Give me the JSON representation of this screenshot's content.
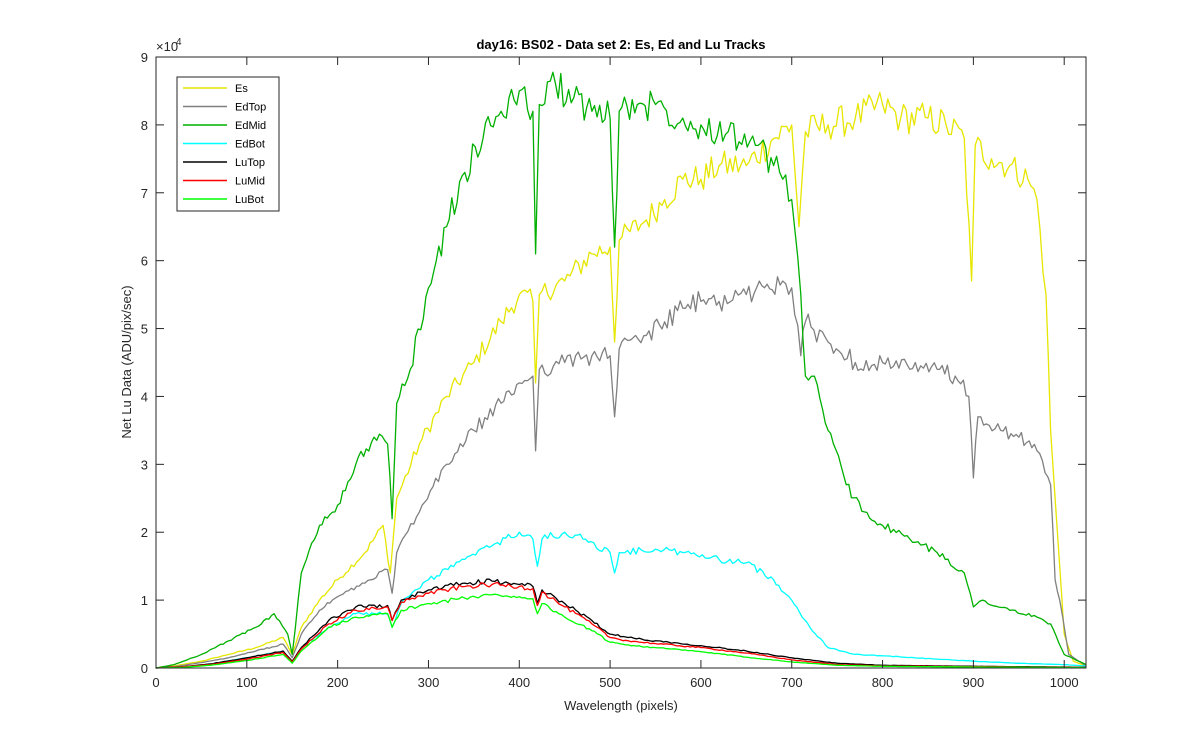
{
  "chart_data": {
    "type": "line",
    "title": "day16: BS02 - Data set 2: Es, Ed and Lu Tracks",
    "xlabel": "Wavelength (pixels)",
    "ylabel": "Net Lu Data (ADU/pix/sec)",
    "xlim": [
      0,
      1024
    ],
    "ylim": [
      0,
      90000
    ],
    "x_ticks": [
      0,
      100,
      200,
      300,
      400,
      500,
      600,
      700,
      800,
      900,
      1000
    ],
    "y_ticks": [
      0,
      10000,
      20000,
      30000,
      40000,
      50000,
      60000,
      70000,
      80000,
      90000
    ],
    "y_tick_labels": [
      "0",
      "1",
      "2",
      "3",
      "4",
      "5",
      "6",
      "7",
      "8",
      "9"
    ],
    "y_exponent_base": "×10",
    "y_exponent_power": "4",
    "grid": false,
    "legend_position": "top-left",
    "series": [
      {
        "name": "Es",
        "color": "#e6e600",
        "points": [
          [
            0,
            0
          ],
          [
            20,
            300
          ],
          [
            50,
            1000
          ],
          [
            80,
            2000
          ],
          [
            110,
            3000
          ],
          [
            140,
            4500
          ],
          [
            150,
            2000
          ],
          [
            160,
            6000
          ],
          [
            180,
            10000
          ],
          [
            200,
            13000
          ],
          [
            230,
            17000
          ],
          [
            250,
            21000
          ],
          [
            258,
            14000
          ],
          [
            265,
            25000
          ],
          [
            290,
            33000
          ],
          [
            320,
            40000
          ],
          [
            350,
            45000
          ],
          [
            380,
            51000
          ],
          [
            400,
            55000
          ],
          [
            415,
            54000
          ],
          [
            418,
            42000
          ],
          [
            422,
            55000
          ],
          [
            450,
            57000
          ],
          [
            480,
            61000
          ],
          [
            500,
            62000
          ],
          [
            505,
            48000
          ],
          [
            510,
            63000
          ],
          [
            540,
            66000
          ],
          [
            560,
            69000
          ],
          [
            580,
            72000
          ],
          [
            600,
            72000
          ],
          [
            620,
            74000
          ],
          [
            650,
            74000
          ],
          [
            680,
            78000
          ],
          [
            700,
            80000
          ],
          [
            708,
            65000
          ],
          [
            715,
            79000
          ],
          [
            740,
            80000
          ],
          [
            770,
            81000
          ],
          [
            800,
            83000
          ],
          [
            820,
            81000
          ],
          [
            850,
            81000
          ],
          [
            870,
            80000
          ],
          [
            890,
            78000
          ],
          [
            898,
            57000
          ],
          [
            902,
            77000
          ],
          [
            920,
            75000
          ],
          [
            940,
            74000
          ],
          [
            960,
            72000
          ],
          [
            970,
            69000
          ],
          [
            980,
            55000
          ],
          [
            985,
            35000
          ],
          [
            990,
            25000
          ],
          [
            1000,
            5000
          ],
          [
            1010,
            1000
          ],
          [
            1024,
            300
          ]
        ]
      },
      {
        "name": "EdTop",
        "color": "#808080",
        "points": [
          [
            0,
            0
          ],
          [
            20,
            200
          ],
          [
            50,
            800
          ],
          [
            80,
            1500
          ],
          [
            110,
            2500
          ],
          [
            140,
            3500
          ],
          [
            150,
            1500
          ],
          [
            160,
            5000
          ],
          [
            180,
            8500
          ],
          [
            200,
            10500
          ],
          [
            230,
            12500
          ],
          [
            255,
            14500
          ],
          [
            260,
            11000
          ],
          [
            265,
            17000
          ],
          [
            290,
            23000
          ],
          [
            320,
            30000
          ],
          [
            350,
            35000
          ],
          [
            380,
            39000
          ],
          [
            400,
            42000
          ],
          [
            415,
            43000
          ],
          [
            418,
            32000
          ],
          [
            422,
            44000
          ],
          [
            450,
            45000
          ],
          [
            480,
            46000
          ],
          [
            500,
            46000
          ],
          [
            505,
            37000
          ],
          [
            510,
            47000
          ],
          [
            540,
            49000
          ],
          [
            560,
            51000
          ],
          [
            580,
            53000
          ],
          [
            600,
            54000
          ],
          [
            620,
            54000
          ],
          [
            650,
            55000
          ],
          [
            670,
            56000
          ],
          [
            690,
            57000
          ],
          [
            700,
            56000
          ],
          [
            710,
            46000
          ],
          [
            715,
            51000
          ],
          [
            740,
            48000
          ],
          [
            770,
            45000
          ],
          [
            800,
            45000
          ],
          [
            830,
            44000
          ],
          [
            860,
            44000
          ],
          [
            880,
            43000
          ],
          [
            895,
            40000
          ],
          [
            900,
            28000
          ],
          [
            905,
            37000
          ],
          [
            930,
            35000
          ],
          [
            950,
            34000
          ],
          [
            970,
            32000
          ],
          [
            985,
            27000
          ],
          [
            990,
            13000
          ],
          [
            995,
            10000
          ],
          [
            1005,
            2000
          ],
          [
            1024,
            300
          ]
        ]
      },
      {
        "name": "EdMid",
        "color": "#00b000",
        "points": [
          [
            0,
            0
          ],
          [
            20,
            500
          ],
          [
            50,
            2000
          ],
          [
            80,
            4000
          ],
          [
            110,
            6000
          ],
          [
            130,
            8000
          ],
          [
            145,
            5000
          ],
          [
            150,
            2000
          ],
          [
            160,
            14000
          ],
          [
            180,
            21000
          ],
          [
            200,
            24000
          ],
          [
            220,
            30000
          ],
          [
            240,
            34000
          ],
          [
            255,
            33000
          ],
          [
            260,
            22000
          ],
          [
            265,
            39000
          ],
          [
            280,
            44000
          ],
          [
            300,
            56000
          ],
          [
            320,
            65000
          ],
          [
            340,
            73000
          ],
          [
            360,
            78000
          ],
          [
            380,
            82000
          ],
          [
            400,
            85000
          ],
          [
            415,
            82000
          ],
          [
            418,
            61000
          ],
          [
            422,
            83000
          ],
          [
            440,
            86000
          ],
          [
            460,
            84000
          ],
          [
            480,
            82000
          ],
          [
            500,
            81000
          ],
          [
            505,
            62000
          ],
          [
            510,
            82000
          ],
          [
            530,
            83000
          ],
          [
            550,
            83000
          ],
          [
            580,
            81000
          ],
          [
            600,
            80000
          ],
          [
            630,
            79000
          ],
          [
            660,
            77000
          ],
          [
            680,
            74000
          ],
          [
            690,
            72000
          ],
          [
            700,
            69000
          ],
          [
            710,
            55000
          ],
          [
            715,
            43000
          ],
          [
            725,
            43000
          ],
          [
            740,
            35000
          ],
          [
            760,
            27000
          ],
          [
            780,
            23000
          ],
          [
            800,
            21000
          ],
          [
            830,
            19000
          ],
          [
            860,
            17000
          ],
          [
            890,
            14000
          ],
          [
            900,
            9000
          ],
          [
            910,
            10000
          ],
          [
            940,
            8500
          ],
          [
            970,
            7500
          ],
          [
            985,
            6500
          ],
          [
            1000,
            2000
          ],
          [
            1024,
            500
          ]
        ]
      },
      {
        "name": "EdBot",
        "color": "#00ffff",
        "points": [
          [
            0,
            0
          ],
          [
            30,
            200
          ],
          [
            60,
            600
          ],
          [
            100,
            1500
          ],
          [
            140,
            2500
          ],
          [
            150,
            800
          ],
          [
            160,
            3000
          ],
          [
            190,
            6000
          ],
          [
            220,
            8000
          ],
          [
            255,
            8000
          ],
          [
            260,
            6000
          ],
          [
            270,
            9500
          ],
          [
            300,
            13000
          ],
          [
            340,
            16000
          ],
          [
            370,
            18000
          ],
          [
            400,
            20000
          ],
          [
            415,
            19000
          ],
          [
            420,
            15000
          ],
          [
            425,
            19000
          ],
          [
            450,
            20000
          ],
          [
            470,
            19000
          ],
          [
            500,
            17000
          ],
          [
            505,
            14000
          ],
          [
            510,
            17000
          ],
          [
            550,
            17500
          ],
          [
            580,
            17000
          ],
          [
            620,
            16000
          ],
          [
            650,
            15500
          ],
          [
            680,
            13000
          ],
          [
            700,
            10000
          ],
          [
            720,
            6000
          ],
          [
            740,
            3000
          ],
          [
            770,
            2000
          ],
          [
            800,
            1800
          ],
          [
            850,
            1400
          ],
          [
            900,
            1000
          ],
          [
            950,
            700
          ],
          [
            1000,
            500
          ],
          [
            1024,
            300
          ]
        ]
      },
      {
        "name": "LuTop",
        "color": "#000000",
        "points": [
          [
            0,
            0
          ],
          [
            30,
            200
          ],
          [
            60,
            600
          ],
          [
            100,
            1500
          ],
          [
            140,
            2500
          ],
          [
            150,
            1000
          ],
          [
            160,
            3000
          ],
          [
            190,
            7000
          ],
          [
            220,
            9000
          ],
          [
            255,
            9200
          ],
          [
            260,
            7000
          ],
          [
            270,
            10000
          ],
          [
            300,
            11500
          ],
          [
            340,
            12500
          ],
          [
            370,
            12800
          ],
          [
            400,
            12300
          ],
          [
            415,
            12000
          ],
          [
            420,
            9500
          ],
          [
            425,
            11500
          ],
          [
            450,
            9500
          ],
          [
            480,
            7000
          ],
          [
            500,
            5000
          ],
          [
            520,
            4500
          ],
          [
            550,
            4000
          ],
          [
            600,
            3300
          ],
          [
            650,
            2500
          ],
          [
            700,
            1500
          ],
          [
            750,
            700
          ],
          [
            800,
            400
          ],
          [
            900,
            250
          ],
          [
            1000,
            150
          ],
          [
            1024,
            100
          ]
        ]
      },
      {
        "name": "LuMid",
        "color": "#ff0000",
        "points": [
          [
            0,
            0
          ],
          [
            30,
            200
          ],
          [
            60,
            500
          ],
          [
            100,
            1300
          ],
          [
            140,
            2300
          ],
          [
            150,
            900
          ],
          [
            160,
            2800
          ],
          [
            190,
            6500
          ],
          [
            220,
            8500
          ],
          [
            255,
            9000
          ],
          [
            260,
            7000
          ],
          [
            270,
            9700
          ],
          [
            300,
            11000
          ],
          [
            340,
            12000
          ],
          [
            370,
            12300
          ],
          [
            400,
            12000
          ],
          [
            415,
            11700
          ],
          [
            420,
            9200
          ],
          [
            425,
            11200
          ],
          [
            450,
            9000
          ],
          [
            480,
            6500
          ],
          [
            500,
            4500
          ],
          [
            520,
            4000
          ],
          [
            550,
            3600
          ],
          [
            600,
            3000
          ],
          [
            650,
            2200
          ],
          [
            700,
            1200
          ],
          [
            750,
            500
          ],
          [
            800,
            300
          ],
          [
            900,
            200
          ],
          [
            1000,
            100
          ],
          [
            1024,
            80
          ]
        ]
      },
      {
        "name": "LuBot",
        "color": "#00ff00",
        "points": [
          [
            0,
            0
          ],
          [
            30,
            100
          ],
          [
            60,
            400
          ],
          [
            100,
            1100
          ],
          [
            140,
            2000
          ],
          [
            150,
            700
          ],
          [
            160,
            2500
          ],
          [
            190,
            6000
          ],
          [
            220,
            7500
          ],
          [
            255,
            8000
          ],
          [
            260,
            6000
          ],
          [
            270,
            8500
          ],
          [
            300,
            9500
          ],
          [
            340,
            10300
          ],
          [
            370,
            10800
          ],
          [
            400,
            10500
          ],
          [
            415,
            10200
          ],
          [
            420,
            8000
          ],
          [
            425,
            9500
          ],
          [
            450,
            7500
          ],
          [
            480,
            5500
          ],
          [
            500,
            3800
          ],
          [
            520,
            3400
          ],
          [
            550,
            3000
          ],
          [
            600,
            2400
          ],
          [
            650,
            1600
          ],
          [
            700,
            900
          ],
          [
            750,
            400
          ],
          [
            800,
            250
          ],
          [
            900,
            150
          ],
          [
            1000,
            80
          ],
          [
            1024,
            60
          ]
        ]
      }
    ]
  }
}
